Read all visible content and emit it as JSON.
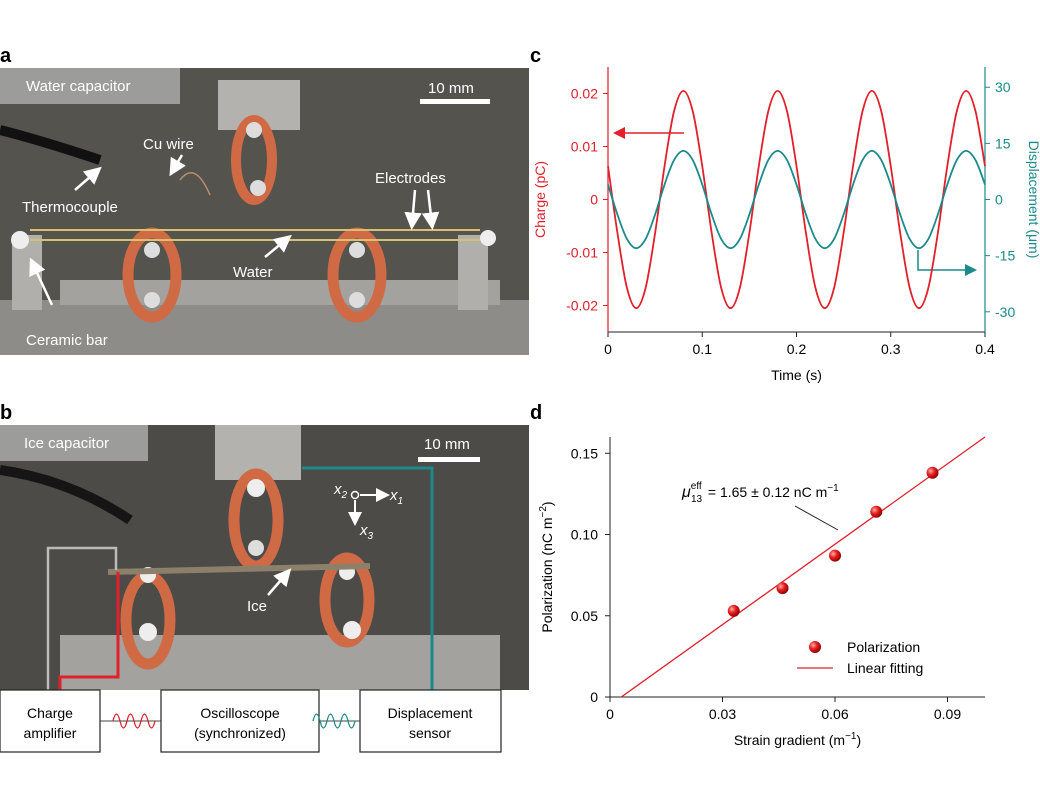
{
  "photos": [
    {
      "label": "a",
      "tag": "Water capacitor",
      "scale": "10 mm",
      "annotations": [
        "Cu wire",
        "Thermocouple",
        "Electrodes",
        "Water",
        "Ceramic bar"
      ]
    },
    {
      "label": "b",
      "tag": "Ice capacitor",
      "scale": "10 mm",
      "annotations": [
        "Ice"
      ],
      "coordinates": [
        {
          "symbol": "x",
          "sub": "2"
        },
        {
          "symbol": "x",
          "sub": "1"
        },
        {
          "symbol": "x",
          "sub": "3"
        }
      ],
      "boxes": [
        {
          "lines": [
            "Charge",
            "amplifier"
          ]
        },
        {
          "lines": [
            "Oscilloscope",
            "(synchronized)"
          ]
        },
        {
          "lines": [
            "Displacement",
            "sensor"
          ]
        }
      ]
    }
  ],
  "chart_data": [
    {
      "type": "line",
      "panel": "c",
      "xlabel": "Time (s)",
      "ylabel": "Charge (pC)",
      "y2label": "Displacement (μm)",
      "x": [
        0,
        0.01,
        0.02,
        0.03,
        0.04,
        0.05,
        0.06,
        0.07,
        0.08,
        0.09,
        0.1,
        0.11,
        0.12,
        0.13,
        0.14,
        0.15,
        0.16,
        0.17,
        0.18,
        0.19,
        0.2,
        0.21,
        0.22,
        0.23,
        0.24,
        0.25,
        0.26,
        0.27,
        0.28,
        0.29,
        0.3,
        0.31,
        0.32,
        0.33,
        0.34,
        0.35,
        0.36,
        0.37,
        0.38,
        0.39,
        0.4
      ],
      "series": [
        {
          "color": "#e0202a",
          "values": [
            0.0063,
            -0.0063,
            -0.0166,
            -0.0205,
            -0.0166,
            -0.0063,
            0.0063,
            0.0166,
            0.0205,
            0.0166,
            0.0063,
            -0.0063,
            -0.0166,
            -0.0205,
            -0.0166,
            -0.0063,
            0.0063,
            0.0166,
            0.0205,
            0.0166,
            0.0063,
            -0.0063,
            -0.0166,
            -0.0205,
            -0.0166,
            -0.0063,
            0.0063,
            0.0166,
            0.0205,
            0.0166,
            0.0063,
            -0.0063,
            -0.0166,
            -0.0205,
            -0.0166,
            -0.0063,
            0.0063,
            0.0166,
            0.0205,
            0.0166,
            0.0063
          ]
        },
        {
          "color": "#1a8a8a",
          "axis": "y2",
          "values": [
            4,
            -4,
            -10.5,
            -13,
            -10.5,
            -4,
            4,
            10.5,
            13,
            10.5,
            4,
            -4,
            -10.5,
            -13,
            -10.5,
            -4,
            4,
            10.5,
            13,
            10.5,
            4,
            -4,
            -10.5,
            -13,
            -10.5,
            -4,
            4,
            10.5,
            13,
            10.5,
            4,
            -4,
            -10.5,
            -13,
            -10.5,
            -4,
            4,
            10.5,
            13,
            10.5,
            4
          ]
        }
      ],
      "xlim": [
        0,
        0.4
      ],
      "xticks": [
        0,
        0.1,
        0.2,
        0.3,
        0.4
      ],
      "ylim": [
        -0.025,
        0.025
      ],
      "yticks": [
        -0.02,
        -0.01,
        0,
        0.01,
        0.02
      ],
      "y2lim": [
        -35.4,
        35.4
      ],
      "y2ticks": [
        -30,
        -15,
        0,
        15,
        30
      ]
    },
    {
      "type": "scatter",
      "panel": "d",
      "xlabel": "Strain gradient (m",
      "xlabel_sup": "−1",
      "xlabel_end": ")",
      "ylabel": "Polarization (nC m",
      "ylabel_sup": "−2",
      "ylabel_end": ")",
      "annotation": {
        "symbol": "μ",
        "sub": "13",
        "sup": "eff",
        "text": " = 1.65 ± 0.12 nC m",
        "exp": "−1"
      },
      "series": [
        {
          "name": "Polarization",
          "kind": "scatter",
          "color": "#e0202a",
          "x": [
            0.033,
            0.046,
            0.06,
            0.071,
            0.086
          ],
          "values": [
            0.053,
            0.067,
            0.087,
            0.114,
            0.138
          ]
        },
        {
          "name": "Linear fitting",
          "kind": "line",
          "color": "#e0202a",
          "x": [
            0.003,
            0.1
          ],
          "values": [
            0,
            0.16
          ]
        }
      ],
      "xlim": [
        0,
        0.1
      ],
      "xticks": [
        0,
        0.03,
        0.06,
        0.09
      ],
      "ylim": [
        0,
        0.16
      ],
      "yticks": [
        0,
        0.05,
        {
          "value": 0.1,
          "label": "0.10"
        },
        0.15
      ],
      "legend": "lower right"
    }
  ]
}
